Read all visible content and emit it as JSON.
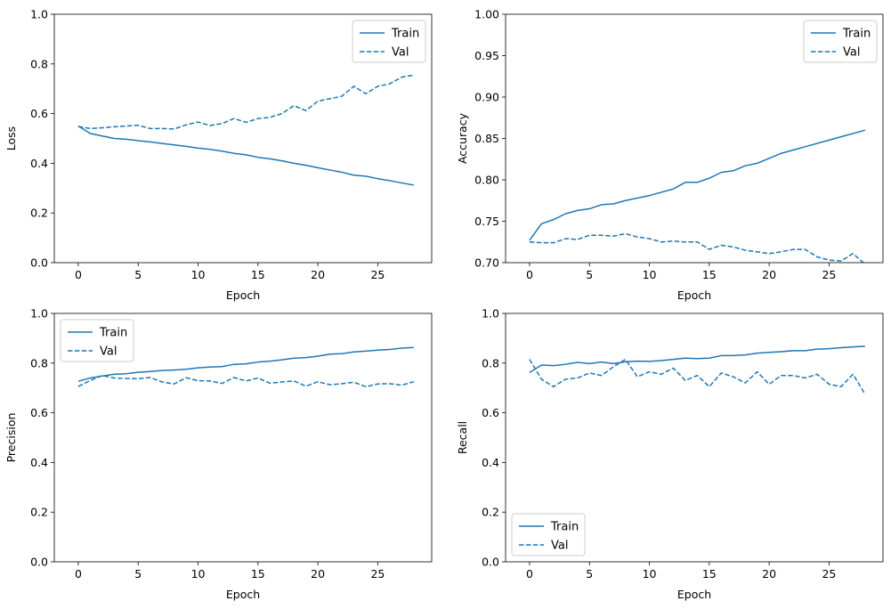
{
  "colors": {
    "series": "#1f77b4",
    "axes": "#000000",
    "legend_border": "#cccccc",
    "background": "#ffffff"
  },
  "chart_data": [
    {
      "type": "line",
      "xlabel": "Epoch",
      "ylabel": "Loss",
      "xlim": [
        -2,
        29.5
      ],
      "ylim": [
        0.0,
        1.0
      ],
      "xticks": [
        0,
        5,
        10,
        15,
        20,
        25
      ],
      "yticks": [
        0.0,
        0.2,
        0.4,
        0.6,
        0.8,
        1.0
      ],
      "ytick_decimals": 1,
      "legend_position": "upper-right",
      "grid": false,
      "x": [
        0,
        1,
        2,
        3,
        4,
        5,
        6,
        7,
        8,
        9,
        10,
        11,
        12,
        13,
        14,
        15,
        16,
        17,
        18,
        19,
        20,
        21,
        22,
        23,
        24,
        25,
        26,
        27,
        28
      ],
      "series": [
        {
          "name": "Train",
          "style": "solid",
          "values": [
            0.55,
            0.52,
            0.51,
            0.5,
            0.497,
            0.491,
            0.486,
            0.48,
            0.474,
            0.468,
            0.461,
            0.456,
            0.449,
            0.44,
            0.434,
            0.424,
            0.418,
            0.41,
            0.4,
            0.392,
            0.382,
            0.373,
            0.364,
            0.352,
            0.348,
            0.338,
            0.33,
            0.321,
            0.312
          ]
        },
        {
          "name": "Val",
          "style": "dashed",
          "values": [
            0.548,
            0.54,
            0.543,
            0.547,
            0.55,
            0.553,
            0.54,
            0.54,
            0.538,
            0.555,
            0.566,
            0.552,
            0.56,
            0.58,
            0.565,
            0.58,
            0.585,
            0.6,
            0.632,
            0.612,
            0.65,
            0.66,
            0.67,
            0.71,
            0.68,
            0.71,
            0.72,
            0.747,
            0.755
          ]
        }
      ]
    },
    {
      "type": "line",
      "xlabel": "Epoch",
      "ylabel": "Accuracy",
      "xlim": [
        -2,
        29.5
      ],
      "ylim": [
        0.7,
        1.0
      ],
      "xticks": [
        0,
        5,
        10,
        15,
        20,
        25
      ],
      "yticks": [
        0.7,
        0.75,
        0.8,
        0.85,
        0.9,
        0.95,
        1.0
      ],
      "ytick_decimals": 2,
      "legend_position": "upper-right",
      "grid": false,
      "x": [
        0,
        1,
        2,
        3,
        4,
        5,
        6,
        7,
        8,
        9,
        10,
        11,
        12,
        13,
        14,
        15,
        16,
        17,
        18,
        19,
        20,
        21,
        22,
        23,
        24,
        25,
        26,
        27,
        28
      ],
      "series": [
        {
          "name": "Train",
          "style": "solid",
          "values": [
            0.727,
            0.747,
            0.752,
            0.759,
            0.763,
            0.765,
            0.77,
            0.771,
            0.775,
            0.778,
            0.781,
            0.785,
            0.789,
            0.797,
            0.797,
            0.802,
            0.809,
            0.811,
            0.817,
            0.82,
            0.826,
            0.832,
            0.836,
            0.84,
            0.844,
            0.848,
            0.852,
            0.856,
            0.86
          ]
        },
        {
          "name": "Val",
          "style": "dashed",
          "values": [
            0.725,
            0.724,
            0.724,
            0.729,
            0.728,
            0.733,
            0.733,
            0.732,
            0.735,
            0.731,
            0.729,
            0.725,
            0.726,
            0.725,
            0.725,
            0.716,
            0.721,
            0.719,
            0.715,
            0.713,
            0.711,
            0.713,
            0.716,
            0.716,
            0.707,
            0.703,
            0.702,
            0.711,
            0.698
          ]
        }
      ]
    },
    {
      "type": "line",
      "xlabel": "Epoch",
      "ylabel": "Precision",
      "xlim": [
        -2,
        29.5
      ],
      "ylim": [
        0.0,
        1.0
      ],
      "xticks": [
        0,
        5,
        10,
        15,
        20,
        25
      ],
      "yticks": [
        0.0,
        0.2,
        0.4,
        0.6,
        0.8,
        1.0
      ],
      "ytick_decimals": 1,
      "legend_position": "upper-left",
      "grid": false,
      "x": [
        0,
        1,
        2,
        3,
        4,
        5,
        6,
        7,
        8,
        9,
        10,
        11,
        12,
        13,
        14,
        15,
        16,
        17,
        18,
        19,
        20,
        21,
        22,
        23,
        24,
        25,
        26,
        27,
        28
      ],
      "series": [
        {
          "name": "Train",
          "style": "solid",
          "values": [
            0.727,
            0.74,
            0.748,
            0.755,
            0.757,
            0.763,
            0.766,
            0.77,
            0.772,
            0.775,
            0.781,
            0.784,
            0.786,
            0.795,
            0.797,
            0.804,
            0.808,
            0.813,
            0.82,
            0.822,
            0.828,
            0.836,
            0.838,
            0.845,
            0.848,
            0.852,
            0.855,
            0.86,
            0.863
          ]
        },
        {
          "name": "Val",
          "style": "dashed",
          "values": [
            0.706,
            0.73,
            0.75,
            0.74,
            0.738,
            0.737,
            0.742,
            0.724,
            0.716,
            0.741,
            0.729,
            0.728,
            0.718,
            0.742,
            0.728,
            0.74,
            0.719,
            0.724,
            0.728,
            0.707,
            0.725,
            0.713,
            0.717,
            0.723,
            0.705,
            0.716,
            0.717,
            0.711,
            0.725
          ]
        }
      ]
    },
    {
      "type": "line",
      "xlabel": "Epoch",
      "ylabel": "Recall",
      "xlim": [
        -2,
        29.5
      ],
      "ylim": [
        0.0,
        1.0
      ],
      "xticks": [
        0,
        5,
        10,
        15,
        20,
        25
      ],
      "yticks": [
        0.0,
        0.2,
        0.4,
        0.6,
        0.8,
        1.0
      ],
      "ytick_decimals": 1,
      "legend_position": "lower-left",
      "grid": false,
      "x": [
        0,
        1,
        2,
        3,
        4,
        5,
        6,
        7,
        8,
        9,
        10,
        11,
        12,
        13,
        14,
        15,
        16,
        17,
        18,
        19,
        20,
        21,
        22,
        23,
        24,
        25,
        26,
        27,
        28
      ],
      "series": [
        {
          "name": "Train",
          "style": "solid",
          "values": [
            0.762,
            0.792,
            0.79,
            0.795,
            0.803,
            0.798,
            0.804,
            0.798,
            0.805,
            0.808,
            0.807,
            0.81,
            0.815,
            0.82,
            0.818,
            0.82,
            0.83,
            0.83,
            0.833,
            0.84,
            0.843,
            0.846,
            0.85,
            0.85,
            0.856,
            0.858,
            0.862,
            0.865,
            0.868
          ]
        },
        {
          "name": "Val",
          "style": "dashed",
          "values": [
            0.815,
            0.735,
            0.705,
            0.735,
            0.74,
            0.76,
            0.75,
            0.785,
            0.815,
            0.745,
            0.765,
            0.755,
            0.78,
            0.73,
            0.75,
            0.705,
            0.76,
            0.745,
            0.72,
            0.765,
            0.715,
            0.75,
            0.75,
            0.74,
            0.755,
            0.715,
            0.705,
            0.755,
            0.675
          ]
        }
      ]
    }
  ]
}
